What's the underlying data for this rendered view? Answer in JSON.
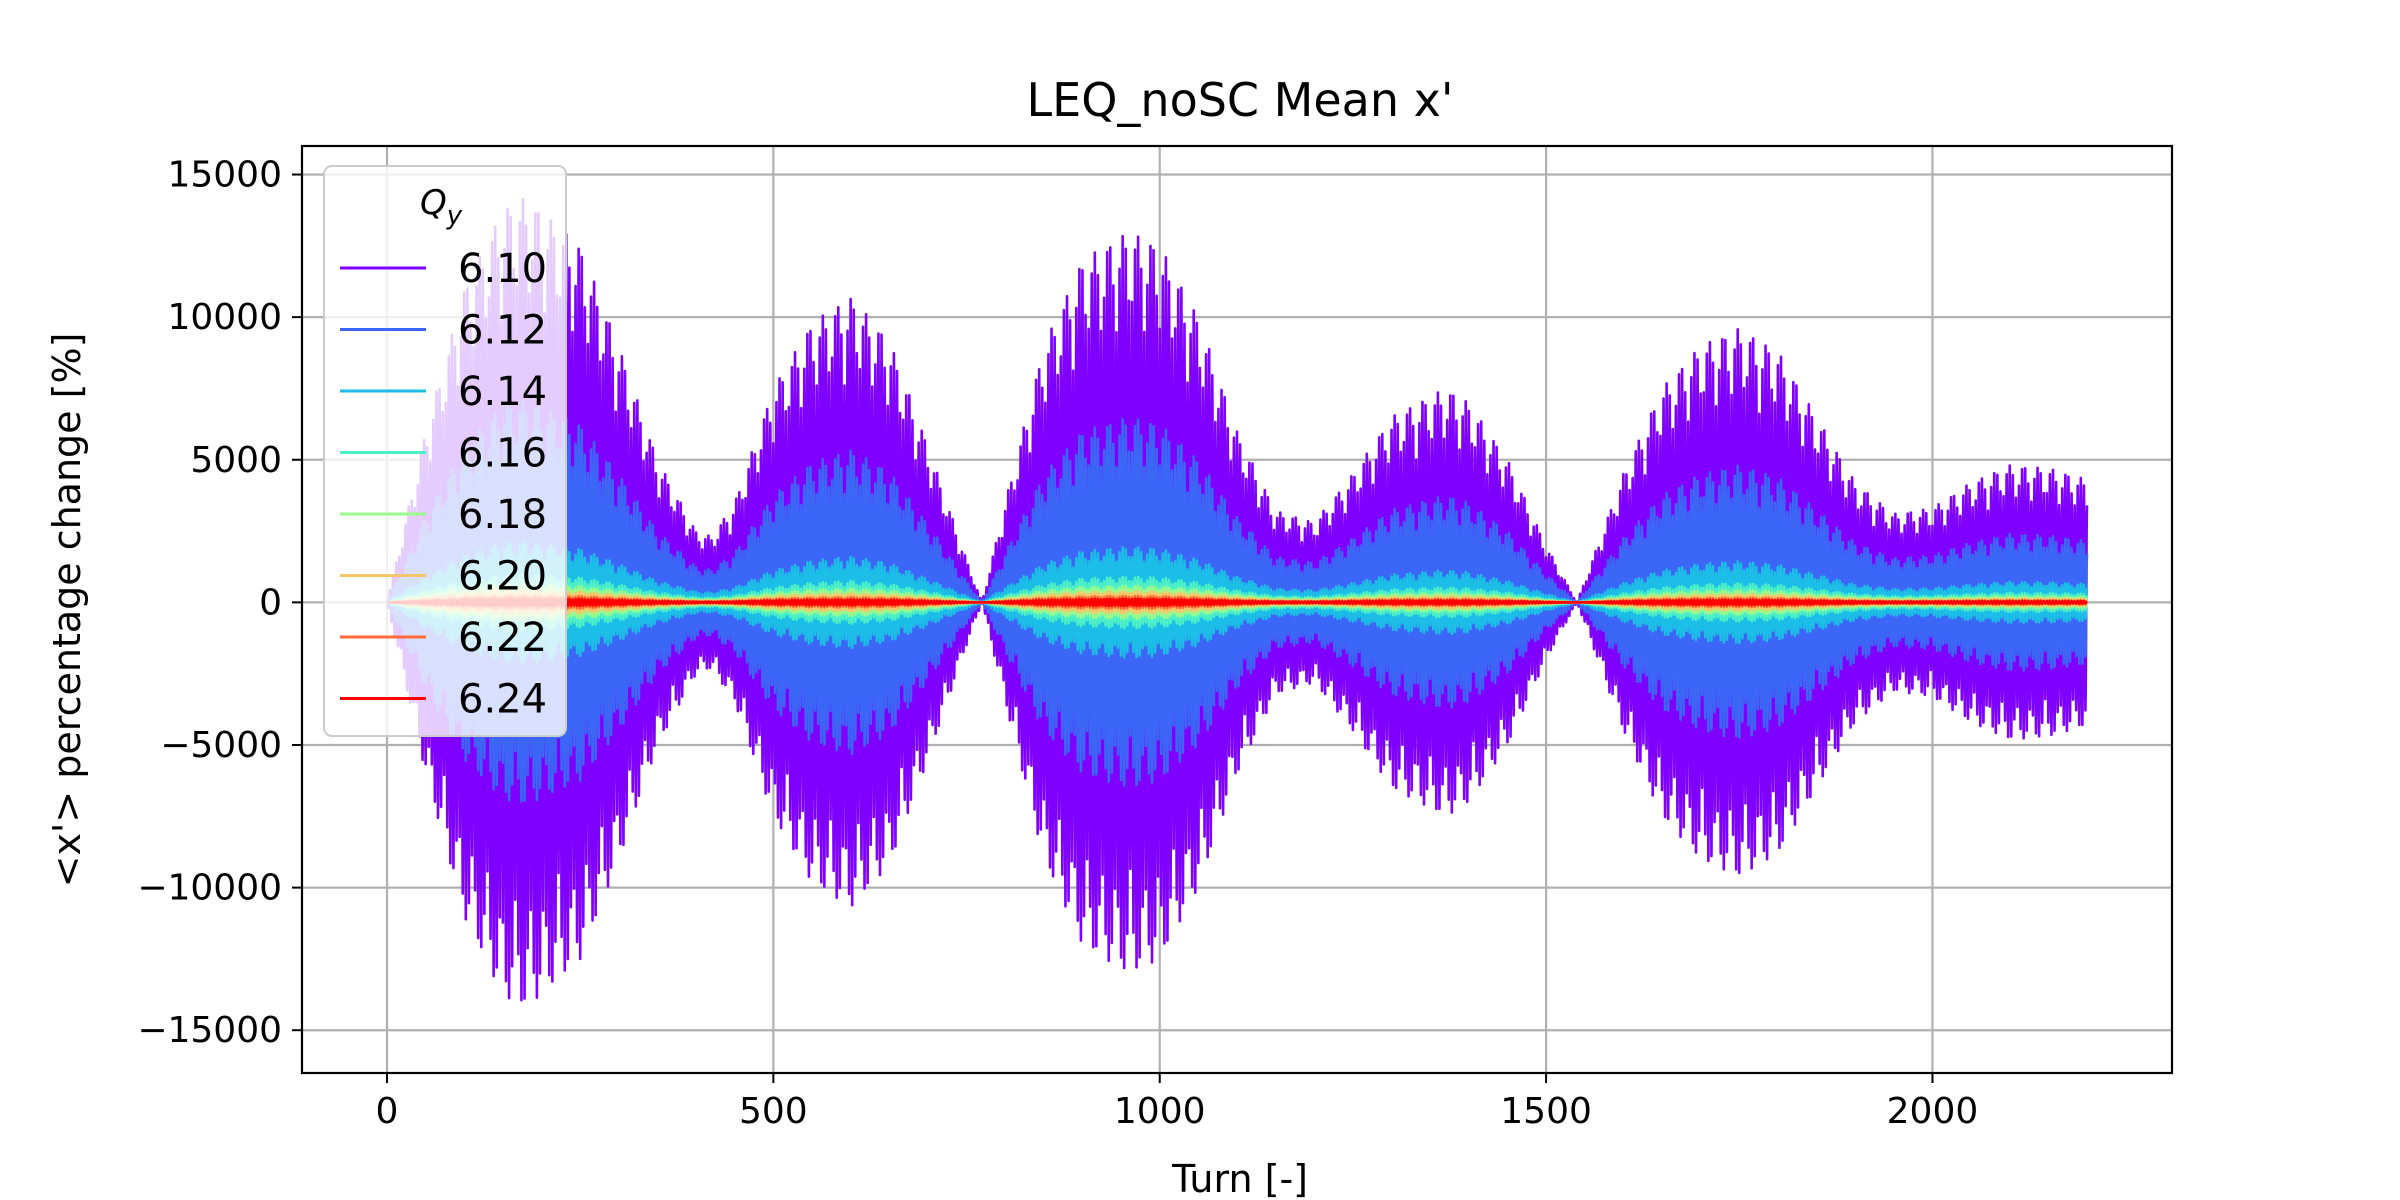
{
  "chart_data": {
    "type": "line",
    "title": "LEQ_noSC Mean x'",
    "xlabel": "Turn [-]",
    "ylabel": "<x'> percentage change [%]",
    "xlim": [
      -110,
      2310
    ],
    "ylim": [
      -16500,
      16000
    ],
    "x_ticks": [
      0,
      500,
      1000,
      1500,
      2000
    ],
    "x_tick_labels": [
      "0",
      "500",
      "1000",
      "1500",
      "2000"
    ],
    "y_ticks": [
      15000,
      10000,
      5000,
      0,
      -5000,
      -10000,
      -15000
    ],
    "y_tick_labels": [
      "15000",
      "10000",
      "5000",
      "0",
      "−5000",
      "−10000",
      "−15000"
    ],
    "grid": true,
    "legend": {
      "title": "Q",
      "title_subscript": "y",
      "placement": "top-left"
    },
    "x_range": [
      0,
      2200
    ],
    "oscillation_period_turns": 4,
    "envelope_x": [
      0,
      50,
      100,
      150,
      180,
      250,
      300,
      350,
      400,
      420,
      450,
      500,
      550,
      600,
      650,
      700,
      750,
      770,
      800,
      850,
      900,
      960,
      1000,
      1050,
      1100,
      1150,
      1200,
      1250,
      1300,
      1370,
      1400,
      1450,
      1500,
      1540,
      1560,
      1600,
      1650,
      1700,
      1750,
      1800,
      1850,
      1900,
      1950,
      2000,
      2050,
      2100,
      2150,
      2200
    ],
    "series": [
      {
        "name": "6.10",
        "color": "#7f00ff",
        "amplitude": [
          0,
          6000,
          11000,
          13800,
          14200,
          12500,
          9000,
          5000,
          2500,
          2300,
          3500,
          7500,
          9800,
          10700,
          9200,
          5500,
          1500,
          0,
          3500,
          9000,
          12000,
          13000,
          12500,
          10000,
          6000,
          3200,
          2800,
          4500,
          6500,
          7500,
          7000,
          5000,
          2000,
          0,
          1500,
          4500,
          7500,
          9000,
          9600,
          8800,
          6500,
          4200,
          3100,
          3300,
          4200,
          4800,
          4700,
          4300
        ]
      },
      {
        "name": "6.12",
        "color": "#3c67f6",
        "amplitude": [
          0,
          3000,
          5500,
          6900,
          7100,
          6250,
          4500,
          2500,
          1250,
          1150,
          1750,
          3750,
          4900,
          5350,
          4600,
          2750,
          750,
          0,
          1750,
          4500,
          6000,
          6500,
          6250,
          5000,
          3000,
          1600,
          1400,
          2250,
          3250,
          3750,
          3500,
          2500,
          1000,
          0,
          750,
          2250,
          3750,
          4500,
          4800,
          4400,
          3250,
          2100,
          1550,
          1650,
          2100,
          2400,
          2350,
          2150
        ]
      },
      {
        "name": "6.14",
        "color": "#1cbde6",
        "amplitude": [
          0,
          900,
          1650,
          2070,
          2130,
          1875,
          1350,
          750,
          375,
          345,
          525,
          1125,
          1470,
          1605,
          1380,
          825,
          225,
          0,
          525,
          1350,
          1800,
          1950,
          1875,
          1500,
          900,
          480,
          420,
          675,
          975,
          1125,
          1050,
          750,
          300,
          0,
          225,
          675,
          1125,
          1350,
          1440,
          1320,
          975,
          630,
          465,
          495,
          630,
          720,
          705,
          645
        ]
      },
      {
        "name": "6.16",
        "color": "#4df0c6",
        "amplitude": [
          0,
          420,
          770,
          966,
          994,
          875,
          630,
          350,
          175,
          161,
          245,
          525,
          686,
          749,
          644,
          385,
          105,
          0,
          245,
          630,
          840,
          910,
          875,
          700,
          420,
          224,
          196,
          315,
          455,
          525,
          490,
          350,
          140,
          0,
          105,
          315,
          525,
          630,
          672,
          616,
          455,
          294,
          217,
          231,
          294,
          336,
          329,
          301
        ]
      },
      {
        "name": "6.18",
        "color": "#9bfa8c",
        "amplitude": [
          0,
          270,
          495,
          621,
          639,
          563,
          405,
          225,
          113,
          104,
          158,
          338,
          441,
          482,
          414,
          248,
          68,
          0,
          158,
          405,
          540,
          585,
          563,
          450,
          270,
          144,
          126,
          203,
          293,
          338,
          315,
          225,
          90,
          0,
          68,
          203,
          338,
          405,
          432,
          396,
          293,
          189,
          140,
          149,
          189,
          216,
          212,
          194
        ]
      },
      {
        "name": "6.20",
        "color": "#f6c66b",
        "amplitude": [
          0,
          180,
          330,
          414,
          426,
          375,
          270,
          150,
          75,
          69,
          105,
          225,
          294,
          321,
          276,
          165,
          45,
          0,
          105,
          270,
          360,
          390,
          375,
          300,
          180,
          96,
          84,
          135,
          195,
          225,
          210,
          150,
          60,
          0,
          45,
          135,
          225,
          270,
          288,
          264,
          195,
          126,
          93,
          99,
          126,
          144,
          141,
          129
        ]
      },
      {
        "name": "6.22",
        "color": "#ff6a36",
        "amplitude": [
          0,
          105,
          193,
          242,
          249,
          219,
          158,
          88,
          44,
          40,
          61,
          131,
          172,
          187,
          161,
          96,
          26,
          0,
          61,
          158,
          210,
          228,
          219,
          175,
          105,
          56,
          49,
          79,
          114,
          131,
          123,
          88,
          35,
          0,
          26,
          79,
          131,
          158,
          168,
          154,
          114,
          74,
          54,
          58,
          74,
          84,
          82,
          75
        ]
      },
      {
        "name": "6.24",
        "color": "#ff0000",
        "amplitude": [
          0,
          60,
          110,
          138,
          142,
          125,
          90,
          50,
          25,
          23,
          35,
          75,
          98,
          107,
          92,
          55,
          15,
          0,
          35,
          90,
          120,
          130,
          125,
          100,
          60,
          32,
          28,
          45,
          65,
          75,
          70,
          50,
          20,
          0,
          15,
          45,
          75,
          90,
          96,
          88,
          65,
          42,
          31,
          33,
          42,
          48,
          47,
          43
        ]
      }
    ]
  }
}
